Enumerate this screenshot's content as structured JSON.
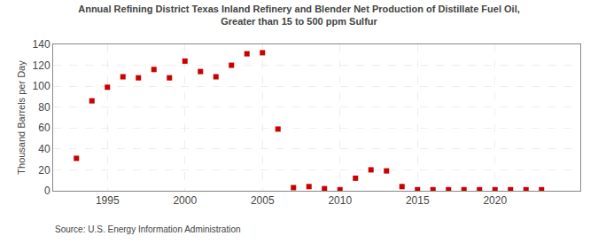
{
  "chart_data": {
    "type": "scatter",
    "title": "Annual Refining District Texas Inland Refinery and Blender Net Production of Distillate Fuel Oil,\nGreater than 15 to 500 ppm Sulfur",
    "ylabel": "Thousand Barrels per Day",
    "annotations": [
      "Source: U.S. Energy Information Administration"
    ],
    "x": [
      1993,
      1994,
      1995,
      1996,
      1997,
      1998,
      1999,
      2000,
      2001,
      2002,
      2003,
      2004,
      2005,
      2006,
      2007,
      2008,
      2009,
      2010,
      2011,
      2012,
      2013,
      2014,
      2015,
      2016,
      2017,
      2018,
      2019,
      2020,
      2021,
      2022,
      2023
    ],
    "values": [
      31,
      86,
      99,
      109,
      108,
      116,
      108,
      124,
      114,
      109,
      120,
      131,
      132,
      59,
      3,
      4,
      2,
      1,
      12,
      20,
      19,
      4,
      1,
      1,
      1,
      1,
      1,
      1,
      1,
      1,
      1
    ],
    "color": "#cc0000",
    "marker": "square",
    "xlim": [
      1991.5,
      2025.5
    ],
    "ylim": [
      0,
      140
    ],
    "xticks": [
      1995,
      2000,
      2005,
      2010,
      2015,
      2020
    ],
    "yticks": [
      0,
      20,
      40,
      60,
      80,
      100,
      120,
      140
    ],
    "grid": true
  }
}
